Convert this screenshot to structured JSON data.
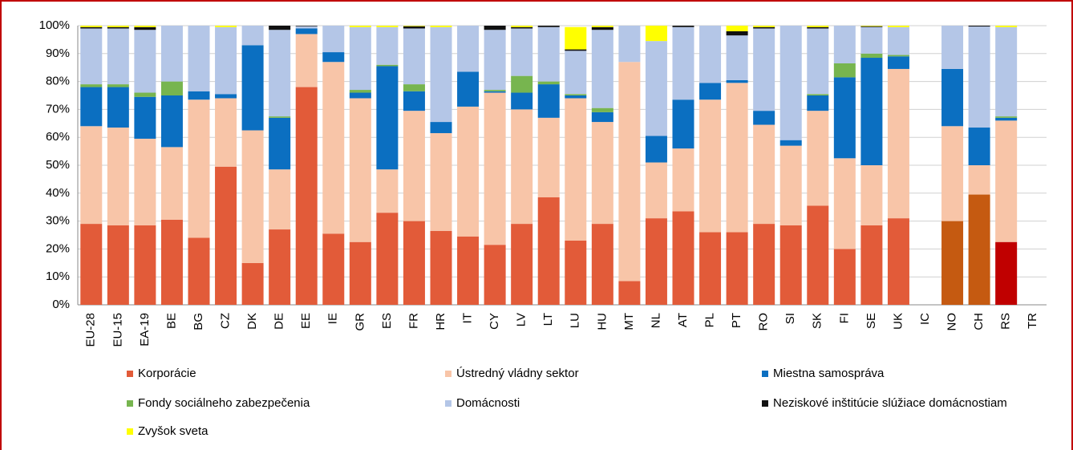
{
  "chart_data": {
    "type": "stacked_bar",
    "categories": [
      "EU-28",
      "EU-15",
      "EA-19",
      "BE",
      "BG",
      "CZ",
      "DK",
      "DE",
      "EE",
      "IE",
      "GR",
      "ES",
      "FR",
      "HR",
      "IT",
      "CY",
      "LV",
      "LT",
      "LU",
      "HU",
      "MT",
      "NL",
      "AT",
      "PL",
      "PT",
      "RO",
      "SI",
      "SK",
      "FI",
      "SE",
      "UK",
      "IC",
      "NO",
      "CH",
      "RS",
      "TR"
    ],
    "series": [
      {
        "name": "Korporácie",
        "color": "#e25b39",
        "colors": [
          "#e25b39",
          "#e25b39",
          "#e25b39",
          "#e25b39",
          "#e25b39",
          "#e25b39",
          "#e25b39",
          "#e25b39",
          "#e25b39",
          "#e25b39",
          "#e25b39",
          "#e25b39",
          "#e25b39",
          "#e25b39",
          "#e25b39",
          "#e25b39",
          "#e25b39",
          "#e25b39",
          "#e25b39",
          "#e25b39",
          "#e25b39",
          "#e25b39",
          "#e25b39",
          "#e25b39",
          "#e25b39",
          "#e25b39",
          "#e25b39",
          "#e25b39",
          "#e25b39",
          "#e25b39",
          "#e25b39",
          "#e25b39",
          "#c55a11",
          "#c55a11",
          "#c00000",
          "#e25b39"
        ],
        "values": [
          29,
          28.5,
          28.5,
          30.5,
          24,
          49.5,
          15,
          27,
          78,
          25.5,
          22.5,
          33,
          30,
          26.5,
          24.5,
          21.5,
          29,
          38.5,
          23,
          29,
          8.5,
          31,
          33.5,
          26,
          26,
          29,
          28.5,
          35.5,
          20,
          28.5,
          31,
          null,
          30,
          39.5,
          22.5,
          null
        ]
      },
      {
        "name": "Ústredný vládny sektor",
        "color": "#f8c5a8",
        "values": [
          35,
          35,
          31,
          26,
          49.5,
          24.5,
          47.5,
          21.5,
          19,
          61.5,
          51.5,
          15.5,
          39.5,
          35,
          46.5,
          54.5,
          41,
          28.5,
          51,
          36.5,
          78.5,
          20,
          22.5,
          47.5,
          53.5,
          35.5,
          28.5,
          34,
          32.5,
          21.5,
          53.5,
          null,
          34,
          10.5,
          43.5,
          null
        ]
      },
      {
        "name": "Miestna samospráva",
        "color": "#0b6fc1",
        "values": [
          14,
          14.5,
          15,
          18.5,
          3,
          1.5,
          30.5,
          18.5,
          2,
          3.5,
          2,
          37,
          7,
          4,
          12.5,
          0.5,
          6,
          12,
          1,
          3.5,
          0,
          9.5,
          17.5,
          6,
          1,
          5,
          2,
          5.5,
          29,
          38.5,
          4.5,
          null,
          20.5,
          13.5,
          1,
          null
        ]
      },
      {
        "name": "Fondy sociálneho zabezpečenia",
        "color": "#77b54f",
        "values": [
          1,
          1,
          1.5,
          5,
          0,
          0,
          0,
          0.5,
          0,
          0,
          1,
          0.5,
          2.5,
          0,
          0,
          0.5,
          6,
          1,
          0.5,
          1.5,
          0,
          0,
          0,
          0,
          0,
          0,
          0,
          0.5,
          5,
          1.5,
          0.5,
          null,
          0,
          0,
          0.5,
          null
        ]
      },
      {
        "name": "Domácnosti",
        "color": "#b4c6e7",
        "values": [
          20,
          20,
          22.5,
          20,
          23.5,
          24,
          7,
          31,
          0.8,
          9.5,
          22.5,
          13.5,
          20,
          34,
          16.5,
          21.5,
          17,
          19.5,
          15.5,
          28,
          13,
          34,
          26,
          20.5,
          16,
          29.5,
          41,
          23.5,
          13.5,
          9.5,
          10,
          null,
          15.5,
          36.2,
          32,
          null
        ]
      },
      {
        "name": "Neziskové inštitúcie slúžiace domácnostiam",
        "color": "#111111",
        "values": [
          0.5,
          0.5,
          1,
          0,
          0,
          0,
          0,
          1.5,
          0.2,
          0,
          0,
          0,
          0.8,
          0,
          0,
          1.5,
          0.5,
          0.5,
          0.5,
          1,
          0,
          0,
          0.5,
          0,
          1.5,
          0.5,
          0,
          0.5,
          0,
          0.3,
          0,
          null,
          0,
          0.3,
          0,
          null
        ]
      },
      {
        "name": "Zvyšok sveta",
        "color": "#ffff00",
        "values": [
          0.5,
          0.5,
          0.5,
          0,
          0,
          0.5,
          0,
          0,
          0,
          0,
          0.5,
          0.5,
          0.2,
          0.5,
          0,
          0,
          0.5,
          0,
          8,
          0.5,
          0,
          5.5,
          0,
          0,
          2,
          0.5,
          0,
          0.5,
          0,
          0.2,
          0.5,
          null,
          0,
          0,
          0.5,
          null
        ]
      }
    ],
    "ylim": [
      0,
      100
    ],
    "yticks": [
      {
        "value": 0,
        "label": "0%"
      },
      {
        "value": 10,
        "label": "10%"
      },
      {
        "value": 20,
        "label": "20%"
      },
      {
        "value": 30,
        "label": "30%"
      },
      {
        "value": 40,
        "label": "40%"
      },
      {
        "value": 50,
        "label": "50%"
      },
      {
        "value": 60,
        "label": "60%"
      },
      {
        "value": 70,
        "label": "70%"
      },
      {
        "value": 80,
        "label": "80%"
      },
      {
        "value": 90,
        "label": "90%"
      },
      {
        "value": 100,
        "label": "100%"
      }
    ],
    "grid": true,
    "legend": "bottom"
  }
}
